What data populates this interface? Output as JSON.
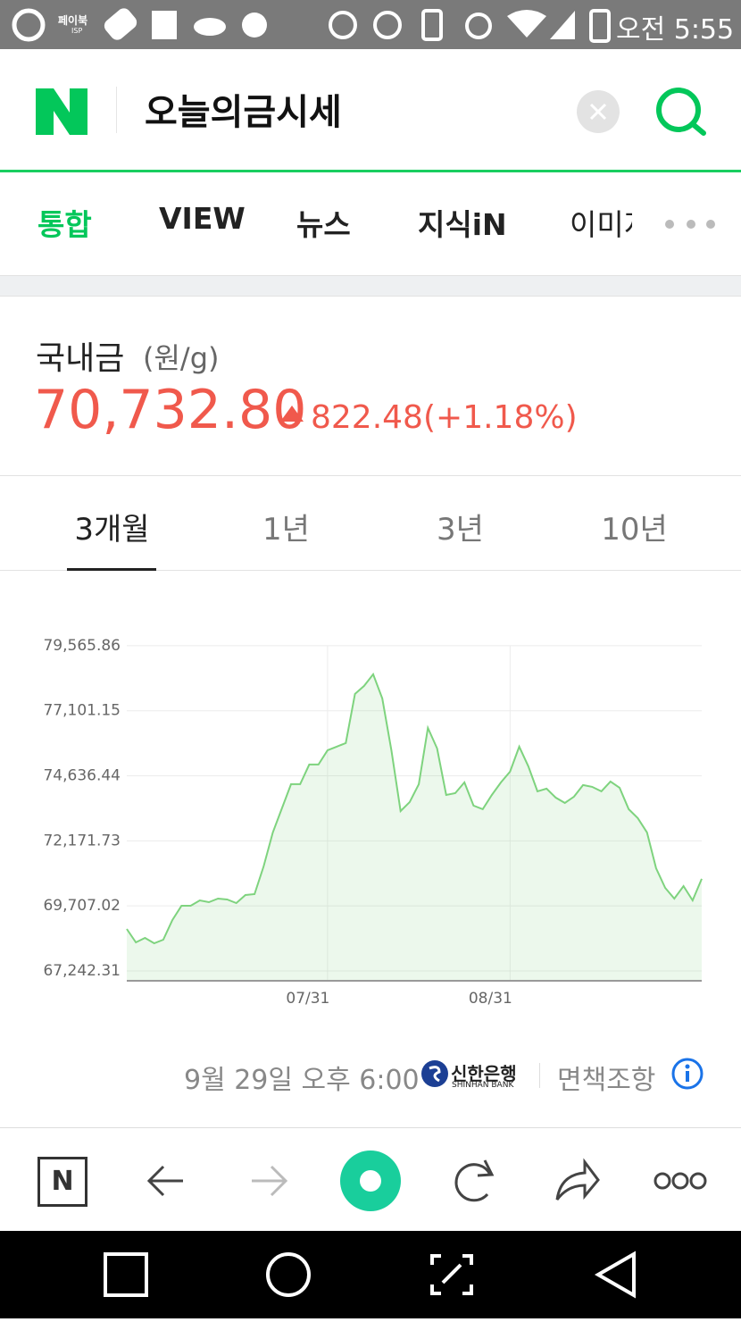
{
  "status_bar": {
    "app_label": "페이북",
    "app_sublabel": "ISP",
    "time": "오전 5:55"
  },
  "search": {
    "query": "오늘의금시세"
  },
  "tabs": [
    "통합",
    "VIEW",
    "뉴스",
    "지식iN",
    "이미지"
  ],
  "price": {
    "name": "국내금",
    "unit": "(원/g)",
    "price": "70,732.80",
    "change": "822.48",
    "change_pct": "(+1.18%)"
  },
  "period_tabs": [
    "3개월",
    "1년",
    "3년",
    "10년"
  ],
  "chart_data": {
    "type": "line",
    "categories": [
      null,
      null,
      null,
      null,
      null,
      null,
      null,
      null,
      null,
      null,
      null,
      null,
      null,
      null,
      null,
      null,
      null,
      null,
      null,
      null,
      null,
      null,
      "07/31",
      null,
      null,
      null,
      null,
      null,
      null,
      null,
      null,
      null,
      null,
      null,
      null,
      null,
      null,
      null,
      null,
      null,
      null,
      null,
      "08/31",
      null,
      null,
      null,
      null,
      null,
      null,
      null,
      null,
      null,
      null,
      null,
      null,
      null,
      null,
      null,
      null,
      null,
      null,
      null,
      null,
      null
    ],
    "values": [
      68834,
      68326,
      68495,
      68292,
      68427,
      69172,
      69714,
      69714,
      69917,
      69849,
      69985,
      69951,
      69815,
      70120,
      70154,
      71204,
      72490,
      73404,
      74318,
      74318,
      75063,
      75063,
      75604,
      75740,
      75876,
      77738,
      78042,
      78483,
      77568,
      75604,
      73302,
      73641,
      74318,
      76451,
      75672,
      73911,
      73980,
      74386,
      73506,
      73370,
      73911,
      74386,
      74792,
      75740,
      74995,
      74047,
      74149,
      73811,
      73607,
      73844,
      74284,
      74217,
      74047,
      74420,
      74183,
      73370,
      73032,
      72490,
      71136,
      70391,
      69985,
      70459,
      69917,
      70733
    ],
    "color": "#7ed37e",
    "ylim": [
      66870,
      79900
    ],
    "yticks": [
      {
        "value": 67242.31,
        "label": "67,242.31"
      },
      {
        "value": 69707.02,
        "label": "69,707.02"
      },
      {
        "value": 72171.73,
        "label": "72,171.73"
      },
      {
        "value": 74636.44,
        "label": "74,636.44"
      },
      {
        "value": 77101.15,
        "label": "77,101.15"
      },
      {
        "value": 79565.86,
        "label": "79,565.86"
      }
    ],
    "grid": true
  },
  "footer": {
    "timestamp": "9월 29일 오후 6:00",
    "source": "신한은행",
    "source_en": "SHINHAN BANK",
    "disclaimer": "면책조항"
  },
  "toolbar": {
    "home_label": "N"
  }
}
